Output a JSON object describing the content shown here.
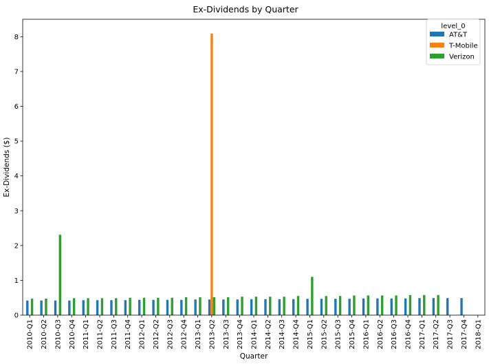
{
  "chart_data": {
    "type": "bar",
    "title": "Ex-Dividends by Quarter",
    "xlabel": "Quarter",
    "ylabel": "Ex-Dividends ($)",
    "ylim": [
      0,
      8.5
    ],
    "yticks": [
      0,
      1,
      2,
      3,
      4,
      5,
      6,
      7,
      8
    ],
    "grid": false,
    "legend": {
      "title": "level_0",
      "placement": "top-right"
    },
    "categories": [
      "2010-Q1",
      "2010-Q2",
      "2010-Q3",
      "2010-Q4",
      "2011-Q1",
      "2011-Q2",
      "2011-Q3",
      "2011-Q4",
      "2012-Q1",
      "2012-Q2",
      "2012-Q3",
      "2012-Q4",
      "2013-Q1",
      "2013-Q2",
      "2013-Q3",
      "2013-Q4",
      "2014-Q1",
      "2014-Q2",
      "2014-Q3",
      "2014-Q4",
      "2015-Q1",
      "2015-Q2",
      "2015-Q3",
      "2015-Q4",
      "2016-Q1",
      "2016-Q2",
      "2016-Q3",
      "2016-Q4",
      "2017-Q1",
      "2017-Q2",
      "2017-Q3",
      "2017-Q4",
      "2018-Q1"
    ],
    "series": [
      {
        "name": "AT&T",
        "color": "#1f77b4",
        "values": [
          0.42,
          0.42,
          0.42,
          0.42,
          0.43,
          0.43,
          0.43,
          0.43,
          0.44,
          0.44,
          0.44,
          0.44,
          0.45,
          0.45,
          0.45,
          0.45,
          0.46,
          0.46,
          0.46,
          0.46,
          0.47,
          0.47,
          0.47,
          0.47,
          0.48,
          0.48,
          0.48,
          0.48,
          0.49,
          0.49,
          0.49,
          0.49,
          0.0
        ]
      },
      {
        "name": "T-Mobile",
        "color": "#ff7f0e",
        "values": [
          0,
          0,
          0,
          0,
          0,
          0,
          0,
          0,
          0,
          0,
          0,
          0,
          0,
          8.09,
          0,
          0,
          0,
          0,
          0,
          0,
          0,
          0,
          0,
          0,
          0,
          0,
          0,
          0,
          0,
          0,
          0,
          0,
          0
        ]
      },
      {
        "name": "Verizon",
        "color": "#2ca02c",
        "values": [
          0.475,
          0.475,
          2.31,
          0.4875,
          0.4875,
          0.4875,
          0.4875,
          0.5,
          0.5,
          0.5,
          0.5,
          0.515,
          0.515,
          0.515,
          0.515,
          0.53,
          0.53,
          0.53,
          0.53,
          0.55,
          1.1,
          0.55,
          0.55,
          0.565,
          0.565,
          0.565,
          0.565,
          0.5775,
          0.5775,
          0.5775,
          0.0,
          0.0,
          0.0
        ]
      }
    ]
  }
}
